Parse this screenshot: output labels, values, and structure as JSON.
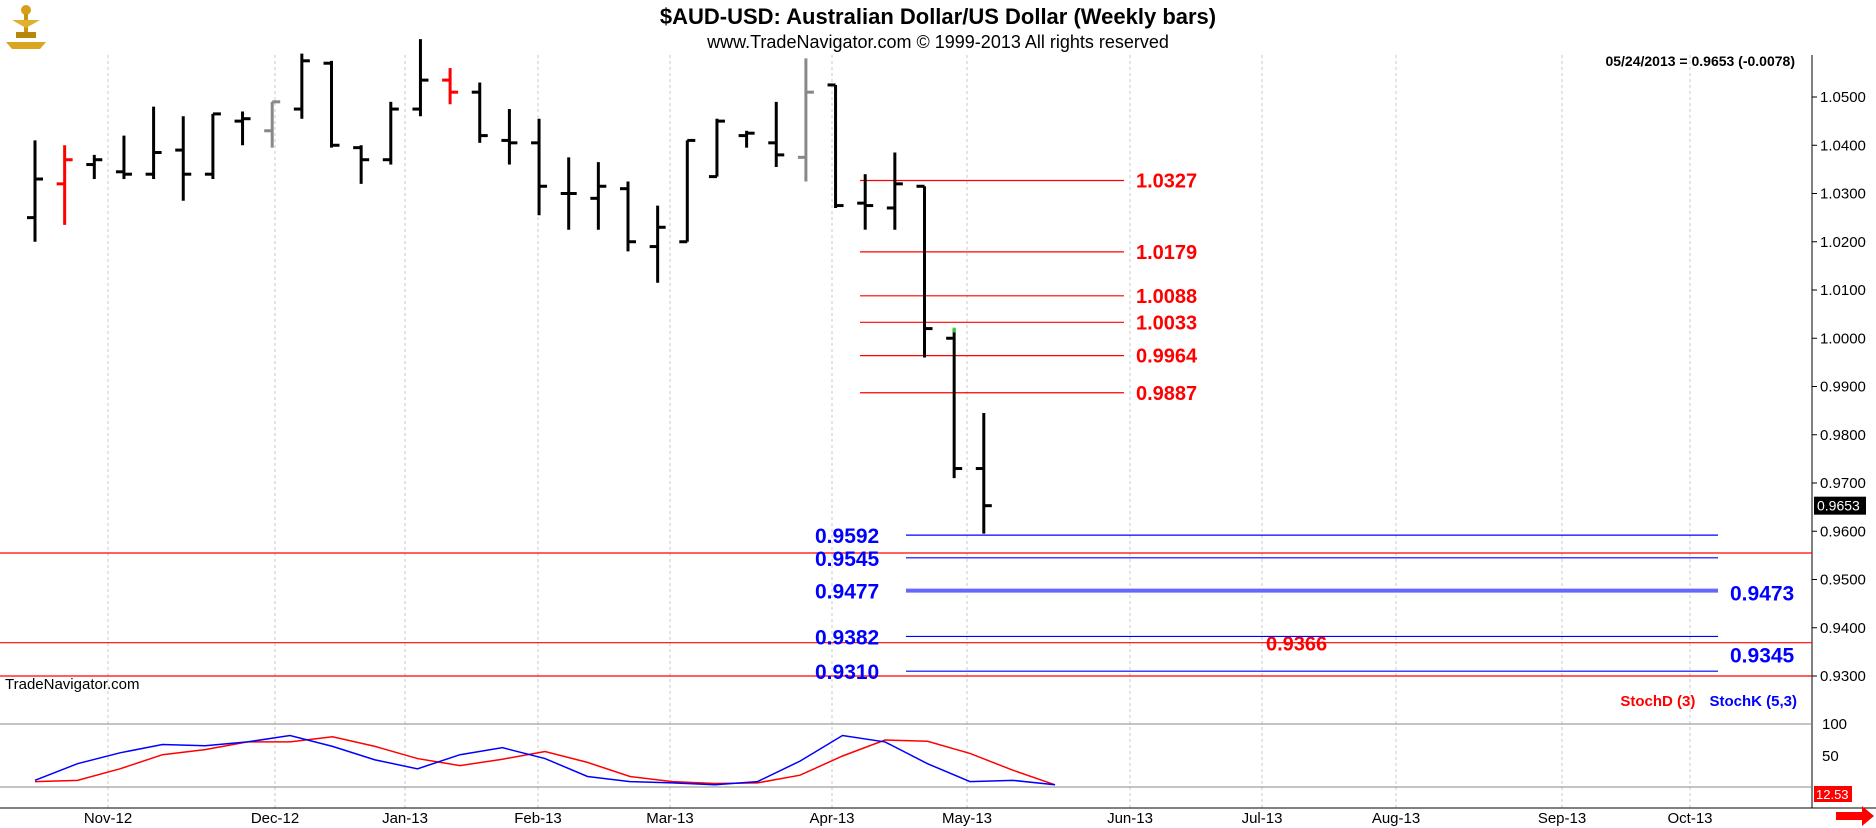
{
  "header": {
    "title": "$AUD-USD:  Australian Dollar/US Dollar  (Weekly bars)",
    "subtitle": "www.TradeNavigator.com © 1999-2013 All rights reserved",
    "last_quote": "05/24/2013 = 0.9653 (-0.0078)",
    "watermark": "TradeNavigator.com"
  },
  "colors": {
    "bar": "#000000",
    "bar_gray": "#888888",
    "bar_red": "#ff0000",
    "fib_red": "#ff0000",
    "target_blue": "#0000ff",
    "stoch_d": "#ff0000",
    "stoch_k": "#0000ff"
  },
  "chart_data": [
    {
      "type": "ohlc",
      "title": "$AUD-USD:  Australian Dollar/US Dollar  (Weekly bars)",
      "x_labels": [
        "Nov-12",
        "Dec-12",
        "Jan-13",
        "Feb-13",
        "Mar-13",
        "Apr-13",
        "May-13",
        "Jun-13",
        "Jul-13",
        "Aug-13",
        "Sep-13",
        "Oct-13"
      ],
      "y_ticks": [
        "1.0500",
        "1.0400",
        "1.0300",
        "1.0200",
        "1.0100",
        "1.0000",
        "0.9900",
        "0.9800",
        "0.9700",
        "0.9600",
        "0.9500",
        "0.9400",
        "0.9300"
      ],
      "ylim": [
        0.9265,
        1.0585
      ],
      "last_price": "0.9653",
      "bars": [
        {
          "o": 1.025,
          "h": 1.041,
          "l": 1.02,
          "c": 1.033,
          "color": "black"
        },
        {
          "o": 1.032,
          "h": 1.04,
          "l": 1.0235,
          "c": 1.037,
          "color": "red"
        },
        {
          "o": 1.036,
          "h": 1.038,
          "l": 1.033,
          "c": 1.037,
          "color": "black"
        },
        {
          "o": 1.0345,
          "h": 1.042,
          "l": 1.033,
          "c": 1.034,
          "color": "black"
        },
        {
          "o": 1.034,
          "h": 1.048,
          "l": 1.033,
          "c": 1.0385,
          "color": "black"
        },
        {
          "o": 1.039,
          "h": 1.046,
          "l": 1.0285,
          "c": 1.034,
          "color": "black"
        },
        {
          "o": 1.034,
          "h": 1.046,
          "l": 1.033,
          "c": 1.0465,
          "color": "black"
        },
        {
          "o": 1.045,
          "h": 1.047,
          "l": 1.04,
          "c": 1.0455,
          "color": "black"
        },
        {
          "o": 1.043,
          "h": 1.049,
          "l": 1.0395,
          "c": 1.049,
          "color": "gray"
        },
        {
          "o": 1.0475,
          "h": 1.059,
          "l": 1.0455,
          "c": 1.0575,
          "color": "black"
        },
        {
          "o": 1.057,
          "h": 1.0575,
          "l": 1.0395,
          "c": 1.04,
          "color": "black"
        },
        {
          "o": 1.0395,
          "h": 1.04,
          "l": 1.032,
          "c": 1.037,
          "color": "black"
        },
        {
          "o": 1.037,
          "h": 1.049,
          "l": 1.036,
          "c": 1.0475,
          "color": "black"
        },
        {
          "o": 1.0475,
          "h": 1.062,
          "l": 1.046,
          "c": 1.0535,
          "color": "black"
        },
        {
          "o": 1.0535,
          "h": 1.056,
          "l": 1.0485,
          "c": 1.051,
          "color": "red"
        },
        {
          "o": 1.051,
          "h": 1.053,
          "l": 1.0405,
          "c": 1.042,
          "color": "black"
        },
        {
          "o": 1.041,
          "h": 1.0475,
          "l": 1.036,
          "c": 1.0405,
          "color": "black"
        },
        {
          "o": 1.0405,
          "h": 1.0455,
          "l": 1.0255,
          "c": 1.0315,
          "color": "black"
        },
        {
          "o": 1.03,
          "h": 1.0375,
          "l": 1.0225,
          "c": 1.03,
          "color": "black"
        },
        {
          "o": 1.029,
          "h": 1.0365,
          "l": 1.0225,
          "c": 1.0315,
          "color": "black"
        },
        {
          "o": 1.031,
          "h": 1.0325,
          "l": 1.018,
          "c": 1.02,
          "color": "black"
        },
        {
          "o": 1.019,
          "h": 1.0275,
          "l": 1.0115,
          "c": 1.023,
          "color": "black"
        },
        {
          "o": 1.02,
          "h": 1.0405,
          "l": 1.0205,
          "c": 1.041,
          "color": "black"
        },
        {
          "o": 1.0335,
          "h": 1.0455,
          "l": 1.0335,
          "c": 1.045,
          "color": "black"
        },
        {
          "o": 1.042,
          "h": 1.043,
          "l": 1.0395,
          "c": 1.0425,
          "color": "black"
        },
        {
          "o": 1.0405,
          "h": 1.049,
          "l": 1.0355,
          "c": 1.038,
          "color": "black"
        },
        {
          "o": 1.0375,
          "h": 1.058,
          "l": 1.0325,
          "c": 1.051,
          "color": "gray"
        },
        {
          "o": 1.0525,
          "h": 1.0525,
          "l": 1.027,
          "c": 1.0275,
          "color": "black"
        },
        {
          "o": 1.028,
          "h": 1.034,
          "l": 1.0225,
          "c": 1.0275,
          "color": "black"
        },
        {
          "o": 1.027,
          "h": 1.0385,
          "l": 1.0225,
          "c": 1.032,
          "color": "black"
        },
        {
          "o": 1.0315,
          "h": 1.031,
          "l": 0.996,
          "c": 1.002,
          "color": "black"
        },
        {
          "o": 1.0,
          "h": 1.002,
          "l": 0.971,
          "c": 0.973,
          "color": "black"
        },
        {
          "o": 0.973,
          "h": 0.9845,
          "l": 0.9595,
          "c": 0.9653,
          "color": "black"
        }
      ],
      "fib_levels": [
        "1.0327",
        "1.0179",
        "1.0088",
        "1.0033",
        "0.9964",
        "0.9887"
      ],
      "blue_targets_left": [
        "0.9592",
        "0.9545",
        "0.9477",
        "0.9382",
        "0.9310"
      ],
      "blue_targets_right": [
        "0.9473",
        "0.9345"
      ],
      "red_support_lines": [
        "0.9555",
        "0.9369",
        "0.9300"
      ],
      "red_support_label": "0.9366"
    },
    {
      "type": "line",
      "legend": [
        "StochD (3)",
        "StochK (5,3)"
      ],
      "y_ticks": [
        "100",
        "50"
      ],
      "ylim": [
        0,
        100
      ],
      "series": [
        {
          "name": "StochD (3)",
          "values": [
            10,
            12,
            30,
            52,
            60,
            72,
            72,
            80,
            65,
            46,
            35,
            45,
            57,
            40,
            18,
            10,
            7,
            8,
            20,
            50,
            75,
            73,
            54,
            28,
            5
          ]
        },
        {
          "name": "StochK (5,3)",
          "values": [
            12,
            38,
            55,
            68,
            66,
            72,
            82,
            65,
            44,
            30,
            52,
            63,
            46,
            18,
            10,
            8,
            5,
            10,
            42,
            82,
            72,
            38,
            10,
            12,
            5
          ]
        }
      ],
      "last_value": "12.53"
    }
  ],
  "indicator": {
    "stoch_d_label": "StochD (3)",
    "stoch_k_label": "StochK (5,3)"
  }
}
